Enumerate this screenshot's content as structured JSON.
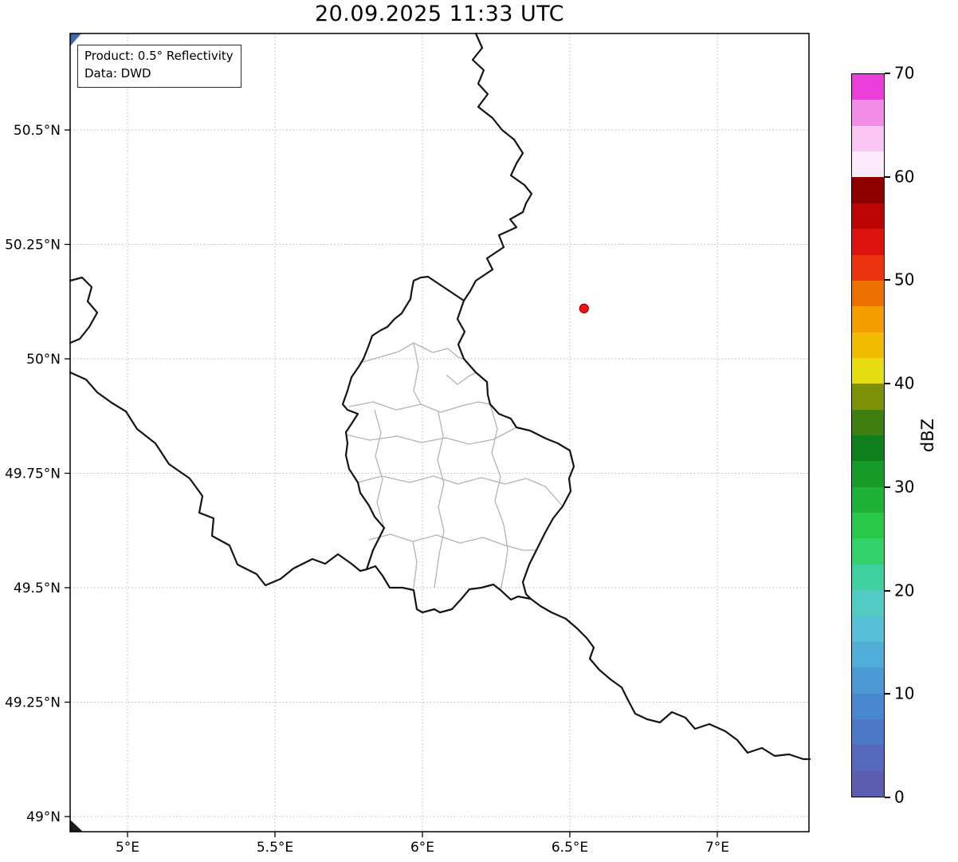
{
  "title": "20.09.2025 11:33 UTC",
  "info_box": {
    "product_line": "Product: 0.5° Reflectivity",
    "data_line": "Data: DWD"
  },
  "map": {
    "x_ticks": [
      {
        "label": "5°E",
        "lon": 5.0
      },
      {
        "label": "5.5°E",
        "lon": 5.5
      },
      {
        "label": "6°E",
        "lon": 6.0
      },
      {
        "label": "6.5°E",
        "lon": 6.5
      },
      {
        "label": "7°E",
        "lon": 7.0
      }
    ],
    "y_ticks": [
      {
        "label": "50.5°N",
        "lat": 50.5
      },
      {
        "label": "50.25°N",
        "lat": 50.25
      },
      {
        "label": "50°N",
        "lat": 50.0
      },
      {
        "label": "49.75°N",
        "lat": 49.75
      },
      {
        "label": "49.5°N",
        "lat": 49.5
      },
      {
        "label": "49.25°N",
        "lat": 49.25
      },
      {
        "label": "49°N",
        "lat": 49.0
      }
    ],
    "extent": {
      "lon_min": 4.805,
      "lon_max": 7.311,
      "lat_min": 48.967,
      "lat_max": 50.711
    },
    "radar_marker": {
      "lon": 6.548,
      "lat": 50.11,
      "color": "#ff1111",
      "edge_color": "#8b0000"
    }
  },
  "colorbar": {
    "label": "dBZ",
    "min": 0,
    "max": 70,
    "tick_values": [
      0,
      10,
      20,
      30,
      40,
      50,
      60,
      70
    ],
    "segment_colors_bottom_to_top": [
      "#5c5cb0",
      "#5668bb",
      "#4b79c5",
      "#4787cd",
      "#4b9ad5",
      "#4fadd8",
      "#57c0d8",
      "#52cbc4",
      "#3fd0a0",
      "#32d26b",
      "#28c947",
      "#1fb236",
      "#179b28",
      "#0e7f1c",
      "#3f7f10",
      "#7e9008",
      "#e5dc12",
      "#f0bc00",
      "#f29c00",
      "#ee7000",
      "#e93311",
      "#df1212",
      "#bc0404",
      "#8e0000",
      "#fdebfb",
      "#f9c6f3",
      "#f28ce8",
      "#e93fd8"
    ]
  }
}
